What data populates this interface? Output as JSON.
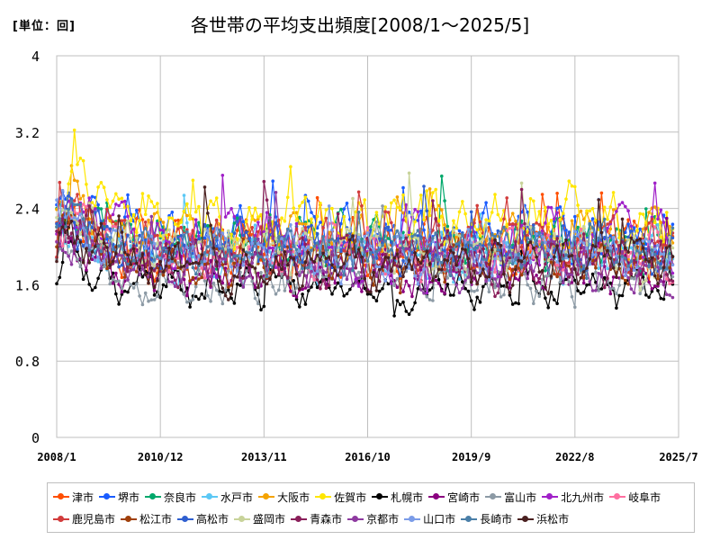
{
  "unit_label": "[単位：回]",
  "chart_data": {
    "type": "line",
    "title": "各世帯の平均支出頻度[2008/1～2025/5]",
    "xlabel": "",
    "ylabel": "",
    "x_range": [
      "2008-01",
      "2025-07"
    ],
    "x_ticks": [
      "2008/1",
      "2010/12",
      "2013/11",
      "2016/10",
      "2019/9",
      "2022/8",
      "2025/7"
    ],
    "ylim": [
      0,
      4
    ],
    "y_ticks": [
      "0",
      "0.8",
      "1.6",
      "2.4",
      "3.2",
      "4"
    ],
    "grid": true,
    "legend_position": "bottom",
    "series": [
      {
        "name": "津市",
        "color": "#ff4f00",
        "base": 2.0,
        "amp": 0.35
      },
      {
        "name": "堺市",
        "color": "#1a5cff",
        "base": 2.1,
        "amp": 0.35
      },
      {
        "name": "奈良市",
        "color": "#00a86b",
        "base": 2.05,
        "amp": 0.3
      },
      {
        "name": "水戸市",
        "color": "#5bc8f5",
        "base": 1.9,
        "amp": 0.3
      },
      {
        "name": "大阪市",
        "color": "#f5a300",
        "base": 2.1,
        "amp": 0.35
      },
      {
        "name": "佐賀市",
        "color": "#ffe600",
        "base": 2.3,
        "amp": 0.45
      },
      {
        "name": "札幌市",
        "color": "#000000",
        "base": 1.55,
        "amp": 0.25
      },
      {
        "name": "宮崎市",
        "color": "#8b0080",
        "base": 1.75,
        "amp": 0.3
      },
      {
        "name": "富山市",
        "color": "#8c9aa5",
        "base": 1.7,
        "amp": 0.35
      },
      {
        "name": "北九州市",
        "color": "#a020c8",
        "base": 2.0,
        "amp": 0.45
      },
      {
        "name": "岐阜市",
        "color": "#ff6fa0",
        "base": 1.95,
        "amp": 0.3
      },
      {
        "name": "鹿児島市",
        "color": "#d23c3c",
        "base": 2.05,
        "amp": 0.35
      },
      {
        "name": "松江市",
        "color": "#a0400a",
        "base": 1.85,
        "amp": 0.3
      },
      {
        "name": "高松市",
        "color": "#2f5fd0",
        "base": 2.0,
        "amp": 0.3
      },
      {
        "name": "盛岡市",
        "color": "#c8d39a",
        "base": 2.0,
        "amp": 0.3
      },
      {
        "name": "青森市",
        "color": "#8a1f5a",
        "base": 1.85,
        "amp": 0.35
      },
      {
        "name": "京都市",
        "color": "#8e3aa0",
        "base": 1.8,
        "amp": 0.3
      },
      {
        "name": "山口市",
        "color": "#7b9ce8",
        "base": 1.9,
        "amp": 0.3
      },
      {
        "name": "長崎市",
        "color": "#4a7fa8",
        "base": 1.95,
        "amp": 0.3
      },
      {
        "name": "浜松市",
        "color": "#4a2020",
        "base": 1.8,
        "amp": 0.3
      }
    ]
  }
}
